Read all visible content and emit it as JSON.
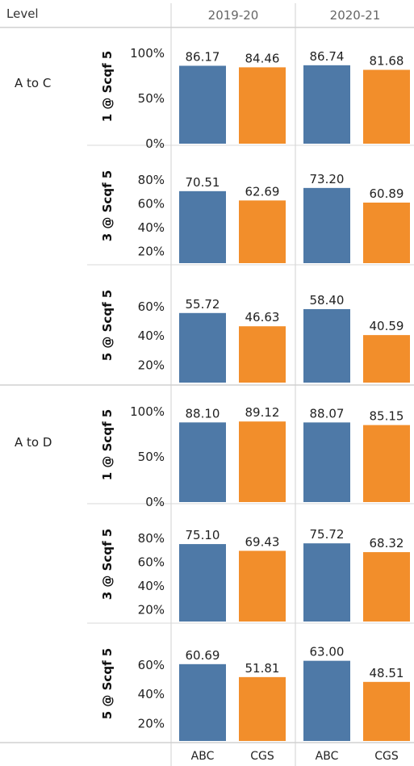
{
  "chart_data": {
    "type": "bar",
    "header": {
      "row_header": "Level",
      "columns": [
        "2019-20",
        "2020-21"
      ]
    },
    "categories": [
      "ABC",
      "CGS"
    ],
    "colors": {
      "ABC": "#4e79a7",
      "CGS": "#f28e2b"
    },
    "levels": [
      {
        "label": "A to C",
        "panels": [
          {
            "metric": "1 @ Scqf 5",
            "ylim": [
              0,
              100
            ],
            "ticks": [
              "100%",
              "50%",
              "0%"
            ],
            "tick_values": [
              100,
              50,
              0
            ],
            "values": [
              [
                86.17,
                84.46
              ],
              [
                86.74,
                81.68
              ]
            ],
            "value_labels": [
              [
                "86.17",
                "84.46"
              ],
              [
                "86.74",
                "81.68"
              ]
            ]
          },
          {
            "metric": "3 @ Scqf 5",
            "ylim": [
              10,
              86
            ],
            "ticks": [
              "80%",
              "60%",
              "40%",
              "20%"
            ],
            "tick_values": [
              80,
              60,
              40,
              20
            ],
            "values": [
              [
                70.51,
                62.69
              ],
              [
                73.2,
                60.89
              ]
            ],
            "value_labels": [
              [
                "70.51",
                "62.69"
              ],
              [
                "73.20",
                "60.89"
              ]
            ]
          },
          {
            "metric": "5 @ Scqf 5",
            "ylim": [
              8,
              70
            ],
            "ticks": [
              "60%",
              "40%",
              "20%"
            ],
            "tick_values": [
              60,
              40,
              20
            ],
            "values": [
              [
                55.72,
                46.63
              ],
              [
                58.4,
                40.59
              ]
            ],
            "value_labels": [
              [
                "55.72",
                "46.63"
              ],
              [
                "58.40",
                "40.59"
              ]
            ]
          }
        ]
      },
      {
        "label": "A to D",
        "panels": [
          {
            "metric": "1 @ Scqf 5",
            "ylim": [
              0,
              100
            ],
            "ticks": [
              "100%",
              "50%",
              "0%"
            ],
            "tick_values": [
              100,
              50,
              0
            ],
            "values": [
              [
                88.1,
                89.12
              ],
              [
                88.07,
                85.15
              ]
            ],
            "value_labels": [
              [
                "88.10",
                "89.12"
              ],
              [
                "88.07",
                "85.15"
              ]
            ]
          },
          {
            "metric": "3 @ Scqf 5",
            "ylim": [
              10,
              86
            ],
            "ticks": [
              "80%",
              "60%",
              "40%",
              "20%"
            ],
            "tick_values": [
              80,
              60,
              40,
              20
            ],
            "values": [
              [
                75.1,
                69.43
              ],
              [
                75.72,
                68.32
              ]
            ],
            "value_labels": [
              [
                "75.10",
                "69.43"
              ],
              [
                "75.72",
                "68.32"
              ]
            ]
          },
          {
            "metric": "5 @ Scqf 5",
            "ylim": [
              8,
              70
            ],
            "ticks": [
              "60%",
              "40%",
              "20%"
            ],
            "tick_values": [
              60,
              40,
              20
            ],
            "values": [
              [
                60.69,
                51.81
              ],
              [
                63.0,
                48.51
              ]
            ],
            "value_labels": [
              [
                "60.69",
                "51.81"
              ],
              [
                "63.00",
                "48.51"
              ]
            ]
          }
        ]
      }
    ]
  }
}
